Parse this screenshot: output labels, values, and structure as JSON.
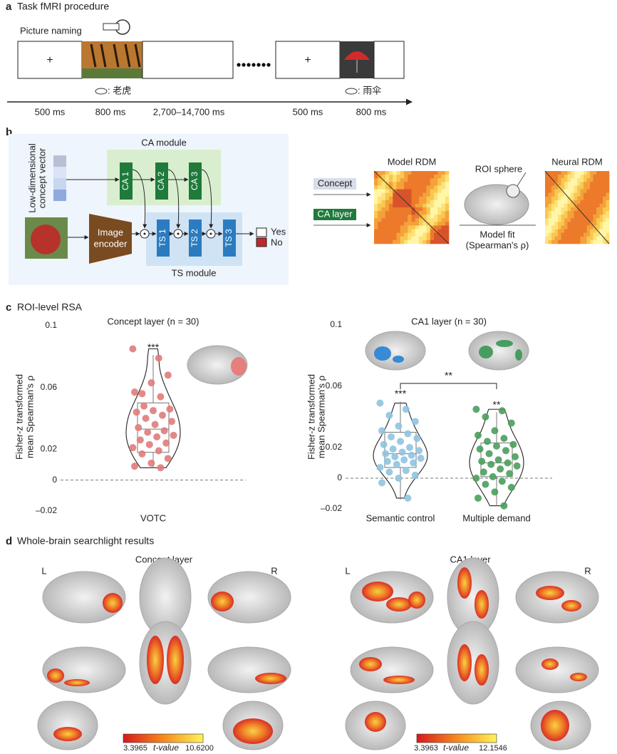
{
  "panel_a": {
    "label": "a",
    "title": "Task fMRI procedure",
    "task": "Picture naming",
    "trials": [
      {
        "fixation": "+",
        "word": ": 老虎"
      },
      {
        "fixation": "+",
        "word": ": 雨伞"
      }
    ],
    "durations": [
      "500 ms",
      "800 ms",
      "2,700–14,700 ms",
      "500 ms",
      "800 ms"
    ]
  },
  "panel_b": {
    "label": "b",
    "concept_vector": [
      "Low-dimensional",
      "concept vector"
    ],
    "ca_module": "CA module",
    "ca_blocks": [
      "CA 1",
      "CA 2",
      "CA 3"
    ],
    "encoder": [
      "Image",
      "encoder"
    ],
    "ts_blocks": [
      "TS 1",
      "TS 2",
      "TS 3"
    ],
    "ts_module": "TS module",
    "outputs": [
      "Yes",
      "No"
    ],
    "inputs": [
      "Concept",
      "CA layer"
    ],
    "model_rdm": "Model RDM",
    "roi": "ROI sphere",
    "fit": [
      "Model fit",
      "(Spearman's ρ)"
    ],
    "neural_rdm": "Neural RDM"
  },
  "panel_c": {
    "label": "c",
    "title": "ROI-level RSA"
  },
  "chart_data": [
    {
      "type": "violin",
      "title": "Concept layer (n = 30)",
      "ylabel": [
        "Fisher-z transformed",
        "mean Spearman's ρ"
      ],
      "categories": [
        "VOTC"
      ],
      "colors": [
        "#e07b7b"
      ],
      "values": [
        [
          0.085,
          0.079,
          0.056,
          0.068,
          0.063,
          0.057,
          0.054,
          0.048,
          0.046,
          0.045,
          0.044,
          0.042,
          0.04,
          0.038,
          0.036,
          0.034,
          0.032,
          0.031,
          0.029,
          0.028,
          0.026,
          0.024,
          0.023,
          0.021,
          0.019,
          0.017,
          0.014,
          0.011,
          0.009,
          0.008
        ]
      ],
      "boxes": [
        {
          "whislo": 0.008,
          "q1": 0.018,
          "med": 0.033,
          "q3": 0.05,
          "whishi": 0.081
        }
      ],
      "stars": [
        "***"
      ],
      "ylim": [
        -0.02,
        0.1
      ],
      "yticks": [
        0.1,
        0.06,
        0.02,
        0,
        {
          "value": -0.02,
          "label": "–0.02"
        }
      ]
    },
    {
      "type": "violin",
      "title": "CA1 layer (n = 30)",
      "ylabel": [
        "Fisher-z transformed",
        "mean Spearman's ρ"
      ],
      "categories": [
        "Semantic control",
        "Multiple demand"
      ],
      "colors": [
        "#8fc3e0",
        "#4a9e5c"
      ],
      "values": [
        [
          0.049,
          0.045,
          0.041,
          0.037,
          0.034,
          0.031,
          0.029,
          0.027,
          0.026,
          0.024,
          0.022,
          0.02,
          0.019,
          0.018,
          0.017,
          0.016,
          0.015,
          0.014,
          0.013,
          0.012,
          0.011,
          0.01,
          0.009,
          0.007,
          0.005,
          0.004,
          0.002,
          0.0,
          -0.003,
          -0.013
        ],
        [
          0.045,
          0.044,
          0.04,
          0.036,
          0.031,
          0.028,
          0.026,
          0.024,
          0.022,
          0.021,
          0.019,
          0.018,
          0.016,
          0.014,
          0.012,
          0.011,
          0.01,
          0.009,
          0.008,
          0.006,
          0.004,
          0.003,
          0.001,
          0.0,
          -0.002,
          -0.004,
          -0.006,
          -0.009,
          -0.013,
          -0.018
        ]
      ],
      "boxes": [
        {
          "whislo": -0.014,
          "q1": 0.007,
          "med": 0.016,
          "q3": 0.03,
          "whishi": 0.05
        },
        {
          "whislo": -0.018,
          "q1": 0.001,
          "med": 0.01,
          "q3": 0.023,
          "whishi": 0.043
        }
      ],
      "stars": [
        "***",
        "**"
      ],
      "comparison": "**",
      "ylim": [
        -0.02,
        0.1
      ],
      "yticks": [
        0.1,
        0.06,
        0.02,
        0,
        {
          "value": -0.02,
          "label": "–0.02"
        }
      ]
    }
  ],
  "panel_d": {
    "label": "d",
    "title": "Whole-brain searchlight results",
    "maps": [
      {
        "title": "Concept layer",
        "left": "L",
        "right": "R",
        "cmin": "3.3965",
        "clabel": "t-value",
        "cmax": "10.6200"
      },
      {
        "title": "CA1 layer",
        "left": "L",
        "right": "R",
        "cmin": "3.3963",
        "clabel": "t-value",
        "cmax": "12.1546"
      }
    ]
  }
}
